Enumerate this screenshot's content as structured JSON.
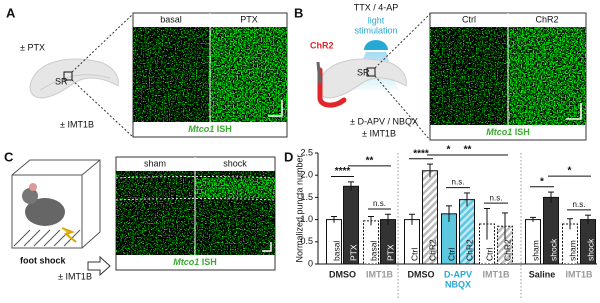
{
  "panels": {
    "a": {
      "letter": "A",
      "treatment": "± PTX",
      "region": "SR",
      "inhibitor": "± IMT1B",
      "headers": [
        "basal",
        "PTX"
      ],
      "caption_gene": "Mtco1",
      "caption_method": "ISH"
    },
    "b": {
      "letter": "B",
      "drugs": "TTX / 4-AP",
      "light": [
        "light",
        "stimulation"
      ],
      "virus": "ChR2",
      "region": "SR",
      "blockers": "± D-APV / NBQX",
      "inhibitor": "± IMT1B",
      "headers": [
        "Ctrl",
        "ChR2"
      ],
      "caption_gene": "Mtco1",
      "caption_method": "ISH"
    },
    "c": {
      "letter": "C",
      "stimulus": "foot shock",
      "inhibitor": "± IMT1B",
      "headers": [
        "sham",
        "shock"
      ],
      "caption_gene": "Mtco1",
      "caption_method": "ISH"
    },
    "d": {
      "letter": "D"
    }
  },
  "chart_data": {
    "type": "bar",
    "ylabel": "Normalized puncta number",
    "ylim": [
      0,
      2.5
    ],
    "yticks": [
      0,
      0.5,
      {
        "value": 1,
        "label": "1.0"
      },
      1.5,
      {
        "value": 2,
        "label": "2.0"
      },
      2.5
    ],
    "categories": [
      "basal",
      "PTX",
      "basal",
      "PTX",
      "Ctrl",
      "ChR2",
      "Ctrl",
      "ChR2",
      "Ctrl",
      "ChR2",
      "sham",
      "shock",
      "sham",
      "shock"
    ],
    "values": [
      1.0,
      1.75,
      0.97,
      1.0,
      1.0,
      2.1,
      1.13,
      1.45,
      0.9,
      0.85,
      1.0,
      1.5,
      0.9,
      1.0
    ],
    "errors": [
      0.07,
      0.1,
      0.1,
      0.12,
      0.12,
      0.15,
      0.18,
      0.15,
      0.35,
      0.3,
      0.05,
      0.12,
      0.12,
      0.1
    ],
    "styles": [
      "open",
      "filled",
      "dashed",
      "filled",
      "open",
      "hatched",
      "cyan",
      "cyan-hatched",
      "dashed",
      "dashed-hatched",
      "open",
      "filled",
      "dashed",
      "filled"
    ],
    "groups": [
      {
        "label": [
          "DMSO"
        ],
        "color": "#222222",
        "bars": 2
      },
      {
        "label": [
          "IMT1B"
        ],
        "color": "#9a9a9a",
        "bars": 2
      },
      {
        "label": [
          "DMSO"
        ],
        "color": "#222222",
        "bars": 2
      },
      {
        "label": [
          "D-APV",
          "NBQX"
        ],
        "color": "#27a9d6",
        "bars": 2
      },
      {
        "label": [
          "IMT1B"
        ],
        "color": "#9a9a9a",
        "bars": 2
      },
      {
        "label": [
          "Saline"
        ],
        "color": "#222222",
        "bars": 2
      },
      {
        "label": [
          "IMT1B"
        ],
        "color": "#9a9a9a",
        "bars": 2
      }
    ],
    "significance": [
      {
        "label": "n.s.",
        "from": 2,
        "to": 3
      },
      {
        "label": "****",
        "from": 0,
        "to": 1
      },
      {
        "label": "**",
        "from": 1,
        "to": 3
      },
      {
        "label": "n.s.",
        "from": 6,
        "to": 7
      },
      {
        "label": "n.s.",
        "from": 8,
        "to": 9
      },
      {
        "label": "****",
        "from": 4,
        "to": 5
      },
      {
        "label": "*",
        "from": 5,
        "to": 7
      },
      {
        "label": "**",
        "from": 5,
        "to": 9
      },
      {
        "label": "n.s.",
        "from": 12,
        "to": 13
      },
      {
        "label": "*",
        "from": 10,
        "to": 11
      },
      {
        "label": "*",
        "from": 11,
        "to": 13
      }
    ]
  }
}
